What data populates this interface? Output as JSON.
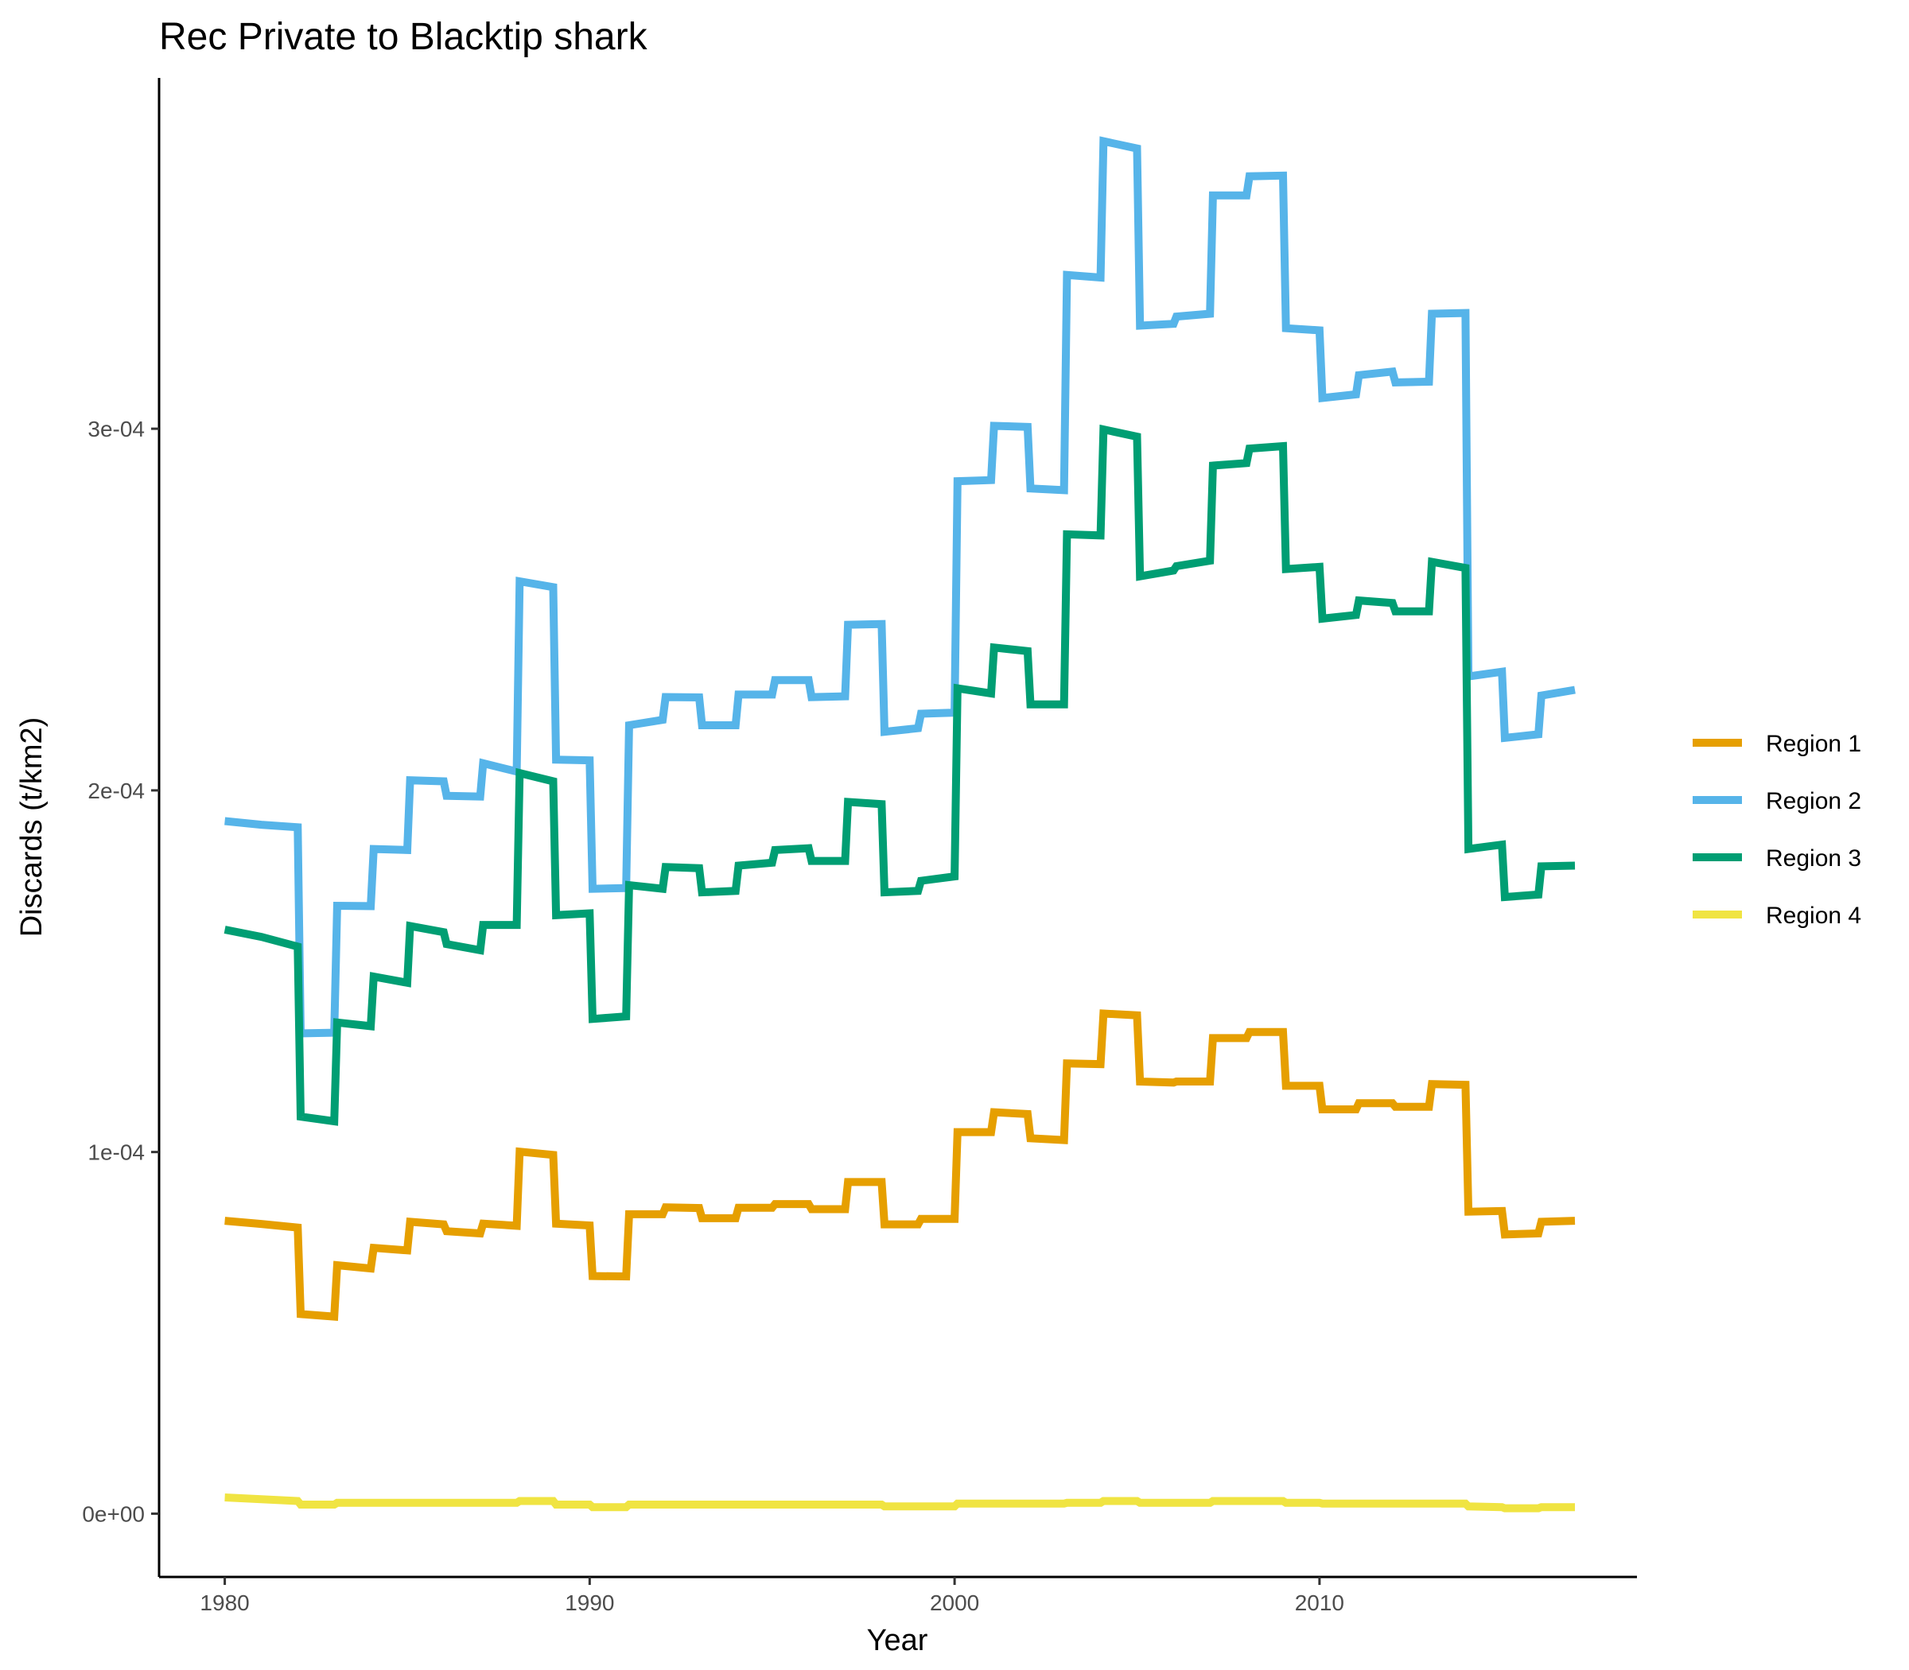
{
  "chart_data": {
    "type": "line",
    "title": "Rec Private to Blacktip shark",
    "xlabel": "Year",
    "ylabel": "Discards (t/km2)",
    "xlim": [
      1978.2,
      2018.7
    ],
    "ylim": [
      -1.75e-05,
      0.000397
    ],
    "x_ticks": [
      {
        "value": 1980,
        "label": "1980"
      },
      {
        "value": 1990,
        "label": "1990"
      },
      {
        "value": 2000,
        "label": "2000"
      },
      {
        "value": 2010,
        "label": "2010"
      }
    ],
    "y_ticks": [
      {
        "value": 0,
        "label": "0e+00"
      },
      {
        "value": 0.0001,
        "label": "1e-04"
      },
      {
        "value": 0.0002,
        "label": "2e-04"
      },
      {
        "value": 0.0003,
        "label": "3e-04"
      }
    ],
    "grid": false,
    "legend_position": "right",
    "series": [
      {
        "name": "Region 1",
        "color": "#E69F00",
        "points": [
          [
            1980.0,
            8.1e-05
          ],
          [
            1981.0,
            8.01e-05
          ],
          [
            1982.0,
            7.91e-05
          ],
          [
            1982.08,
            5.52e-05
          ],
          [
            1983.0,
            5.45e-05
          ],
          [
            1983.08,
            6.87e-05
          ],
          [
            1984.0,
            6.78e-05
          ],
          [
            1984.08,
            7.35e-05
          ],
          [
            1985.0,
            7.28e-05
          ],
          [
            1985.08,
            8.07e-05
          ],
          [
            1986.0,
            8e-05
          ],
          [
            1986.08,
            7.81e-05
          ],
          [
            1987.0,
            7.75e-05
          ],
          [
            1987.08,
            8.02e-05
          ],
          [
            1988.0,
            7.96e-05
          ],
          [
            1988.08,
            0.0001001
          ],
          [
            1989.0,
            9.92e-05
          ],
          [
            1989.08,
            8.02e-05
          ],
          [
            1990.0,
            7.97e-05
          ],
          [
            1990.08,
            6.57e-05
          ],
          [
            1991.0,
            6.56e-05
          ],
          [
            1991.08,
            8.28e-05
          ],
          [
            1992.0,
            8.28e-05
          ],
          [
            1992.08,
            8.47e-05
          ],
          [
            1993.0,
            8.45e-05
          ],
          [
            1993.08,
            8.17e-05
          ],
          [
            1994.0,
            8.17e-05
          ],
          [
            1994.08,
            8.46e-05
          ],
          [
            1995.0,
            8.46e-05
          ],
          [
            1995.08,
            8.56e-05
          ],
          [
            1996.0,
            8.56e-05
          ],
          [
            1996.08,
            8.42e-05
          ],
          [
            1997.0,
            8.42e-05
          ],
          [
            1997.08,
            9.17e-05
          ],
          [
            1998.0,
            9.17e-05
          ],
          [
            1998.08,
            8e-05
          ],
          [
            1999.0,
            8e-05
          ],
          [
            1999.08,
            8.15e-05
          ],
          [
            2000.0,
            8.15e-05
          ],
          [
            2000.08,
            0.0001055
          ],
          [
            2001.0,
            0.0001055
          ],
          [
            2001.08,
            0.000111
          ],
          [
            2002.0,
            0.0001105
          ],
          [
            2002.08,
            0.0001038
          ],
          [
            2003.0,
            0.0001033
          ],
          [
            2003.08,
            0.0001245
          ],
          [
            2004.0,
            0.0001243
          ],
          [
            2004.08,
            0.0001383
          ],
          [
            2005.0,
            0.0001378
          ],
          [
            2005.08,
            0.0001195
          ],
          [
            2006.0,
            0.0001192
          ],
          [
            2006.08,
            0.0001195
          ],
          [
            2007.0,
            0.0001195
          ],
          [
            2007.08,
            0.0001315
          ],
          [
            2008.0,
            0.0001315
          ],
          [
            2008.08,
            0.0001332
          ],
          [
            2009.0,
            0.0001332
          ],
          [
            2009.08,
            0.0001183
          ],
          [
            2010.0,
            0.0001183
          ],
          [
            2010.08,
            0.0001118
          ],
          [
            2011.0,
            0.0001118
          ],
          [
            2011.08,
            0.0001135
          ],
          [
            2012.0,
            0.0001135
          ],
          [
            2012.08,
            0.0001125
          ],
          [
            2013.0,
            0.0001125
          ],
          [
            2013.08,
            0.0001188
          ],
          [
            2014.0,
            0.0001186
          ],
          [
            2014.08,
            8.35e-05
          ],
          [
            2015.0,
            8.37e-05
          ],
          [
            2015.08,
            7.72e-05
          ],
          [
            2016.0,
            7.75e-05
          ],
          [
            2016.08,
            8.07e-05
          ],
          [
            2017.0,
            8.1e-05
          ]
        ]
      },
      {
        "name": "Region 2",
        "color": "#56B4E9",
        "points": [
          [
            1980.0,
            0.0001915
          ],
          [
            1981.0,
            0.0001905
          ],
          [
            1982.0,
            0.0001898
          ],
          [
            1982.08,
            0.0001328
          ],
          [
            1983.0,
            0.000133
          ],
          [
            1983.08,
            0.0001681
          ],
          [
            1984.0,
            0.000168
          ],
          [
            1984.08,
            0.0001838
          ],
          [
            1985.0,
            0.0001835
          ],
          [
            1985.08,
            0.0002028
          ],
          [
            1986.0,
            0.0002025
          ],
          [
            1986.08,
            0.0001985
          ],
          [
            1987.0,
            0.0001983
          ],
          [
            1987.08,
            0.0002075
          ],
          [
            1988.0,
            0.0002052
          ],
          [
            1988.08,
            0.0002578
          ],
          [
            1989.0,
            0.0002562
          ],
          [
            1989.08,
            0.0002085
          ],
          [
            1990.0,
            0.0002083
          ],
          [
            1990.08,
            0.0001728
          ],
          [
            1991.0,
            0.000173
          ],
          [
            1991.08,
            0.000218
          ],
          [
            1992.0,
            0.0002195
          ],
          [
            1992.08,
            0.0002258
          ],
          [
            1993.0,
            0.0002257
          ],
          [
            1993.08,
            0.000218
          ],
          [
            1994.0,
            0.000218
          ],
          [
            1994.08,
            0.0002265
          ],
          [
            1995.0,
            0.0002265
          ],
          [
            1995.08,
            0.0002305
          ],
          [
            1996.0,
            0.0002305
          ],
          [
            1996.08,
            0.0002258
          ],
          [
            1997.0,
            0.000226
          ],
          [
            1997.08,
            0.0002458
          ],
          [
            1998.0,
            0.000246
          ],
          [
            1998.08,
            0.0002162
          ],
          [
            1999.0,
            0.0002172
          ],
          [
            1999.08,
            0.0002212
          ],
          [
            2000.0,
            0.0002215
          ],
          [
            2000.08,
            0.0002855
          ],
          [
            2001.0,
            0.0002858
          ],
          [
            2001.08,
            0.0003008
          ],
          [
            2002.0,
            0.0003005
          ],
          [
            2002.08,
            0.0002835
          ],
          [
            2003.0,
            0.000283
          ],
          [
            2003.08,
            0.0003425
          ],
          [
            2004.0,
            0.0003418
          ],
          [
            2004.08,
            0.0003795
          ],
          [
            2005.0,
            0.0003775
          ],
          [
            2005.08,
            0.0003285
          ],
          [
            2006.0,
            0.000329
          ],
          [
            2006.08,
            0.000331
          ],
          [
            2007.0,
            0.0003318
          ],
          [
            2007.08,
            0.0003645
          ],
          [
            2008.0,
            0.0003645
          ],
          [
            2008.08,
            0.0003698
          ],
          [
            2009.0,
            0.00037
          ],
          [
            2009.08,
            0.0003278
          ],
          [
            2010.0,
            0.0003272
          ],
          [
            2010.08,
            0.0003085
          ],
          [
            2011.0,
            0.0003095
          ],
          [
            2011.08,
            0.0003148
          ],
          [
            2012.0,
            0.0003158
          ],
          [
            2012.08,
            0.0003128
          ],
          [
            2013.0,
            0.000313
          ],
          [
            2013.08,
            0.0003318
          ],
          [
            2014.0,
            0.000332
          ],
          [
            2014.08,
            0.0002315
          ],
          [
            2015.0,
            0.0002328
          ],
          [
            2015.08,
            0.0002145
          ],
          [
            2016.0,
            0.0002155
          ],
          [
            2016.08,
            0.0002262
          ],
          [
            2017.0,
            0.0002278
          ]
        ]
      },
      {
        "name": "Region 3",
        "color": "#009E73",
        "points": [
          [
            1980.0,
            0.0001615
          ],
          [
            1981.0,
            0.0001595
          ],
          [
            1982.0,
            0.0001568
          ],
          [
            1982.08,
            0.0001098
          ],
          [
            1983.0,
            0.0001085
          ],
          [
            1983.08,
            0.0001358
          ],
          [
            1984.0,
            0.0001348
          ],
          [
            1984.08,
            0.0001485
          ],
          [
            1985.0,
            0.0001468
          ],
          [
            1985.08,
            0.0001625
          ],
          [
            1986.0,
            0.0001608
          ],
          [
            1986.08,
            0.0001575
          ],
          [
            1987.0,
            0.0001558
          ],
          [
            1987.08,
            0.0001628
          ],
          [
            1988.0,
            0.0001628
          ],
          [
            1988.08,
            0.0002048
          ],
          [
            1989.0,
            0.0002025
          ],
          [
            1989.08,
            0.0001655
          ],
          [
            1990.0,
            0.000166
          ],
          [
            1990.08,
            0.0001368
          ],
          [
            1991.0,
            0.0001375
          ],
          [
            1991.08,
            0.0001738
          ],
          [
            1992.0,
            0.0001728
          ],
          [
            1992.08,
            0.0001788
          ],
          [
            1993.0,
            0.0001785
          ],
          [
            1993.08,
            0.0001718
          ],
          [
            1994.0,
            0.0001722
          ],
          [
            1994.08,
            0.0001792
          ],
          [
            1995.0,
            0.00018
          ],
          [
            1995.08,
            0.0001835
          ],
          [
            1996.0,
            0.000184
          ],
          [
            1996.08,
            0.0001805
          ],
          [
            1997.0,
            0.0001805
          ],
          [
            1997.08,
            0.0001968
          ],
          [
            1998.0,
            0.0001962
          ],
          [
            1998.08,
            0.0001718
          ],
          [
            1999.0,
            0.0001722
          ],
          [
            1999.08,
            0.000175
          ],
          [
            2000.0,
            0.0001762
          ],
          [
            2000.08,
            0.0002282
          ],
          [
            2001.0,
            0.0002268
          ],
          [
            2001.08,
            0.0002395
          ],
          [
            2002.0,
            0.0002385
          ],
          [
            2002.08,
            0.0002238
          ],
          [
            2003.0,
            0.0002238
          ],
          [
            2003.08,
            0.0002708
          ],
          [
            2004.0,
            0.0002705
          ],
          [
            2004.08,
            0.0002998
          ],
          [
            2005.0,
            0.0002978
          ],
          [
            2005.08,
            0.0002592
          ],
          [
            2006.0,
            0.0002608
          ],
          [
            2006.08,
            0.000262
          ],
          [
            2007.0,
            0.0002635
          ],
          [
            2007.08,
            0.0002898
          ],
          [
            2008.0,
            0.0002905
          ],
          [
            2008.08,
            0.0002945
          ],
          [
            2009.0,
            0.0002952
          ],
          [
            2009.08,
            0.0002612
          ],
          [
            2010.0,
            0.0002618
          ],
          [
            2010.08,
            0.0002475
          ],
          [
            2011.0,
            0.0002485
          ],
          [
            2011.08,
            0.0002525
          ],
          [
            2012.0,
            0.0002518
          ],
          [
            2012.08,
            0.0002495
          ],
          [
            2013.0,
            0.0002495
          ],
          [
            2013.08,
            0.0002632
          ],
          [
            2014.0,
            0.0002615
          ],
          [
            2014.08,
            0.0001838
          ],
          [
            2015.0,
            0.000185
          ],
          [
            2015.08,
            0.0001705
          ],
          [
            2016.0,
            0.0001712
          ],
          [
            2016.08,
            0.000179
          ],
          [
            2017.0,
            0.0001792
          ]
        ]
      },
      {
        "name": "Region 4",
        "color": "#F0E442",
        "points": [
          [
            1980.0,
            4.5e-06
          ],
          [
            1981.0,
            4e-06
          ],
          [
            1982.0,
            3.5e-06
          ],
          [
            1982.08,
            2.5e-06
          ],
          [
            1983.0,
            2.5e-06
          ],
          [
            1983.08,
            3e-06
          ],
          [
            1984.0,
            3e-06
          ],
          [
            1985.0,
            3e-06
          ],
          [
            1986.0,
            3e-06
          ],
          [
            1987.0,
            3e-06
          ],
          [
            1988.0,
            3e-06
          ],
          [
            1988.08,
            3.5e-06
          ],
          [
            1989.0,
            3.5e-06
          ],
          [
            1989.08,
            2.5e-06
          ],
          [
            1990.0,
            2.5e-06
          ],
          [
            1990.08,
            1.8e-06
          ],
          [
            1991.0,
            1.8e-06
          ],
          [
            1991.08,
            2.5e-06
          ],
          [
            1992.0,
            2.5e-06
          ],
          [
            1997.0,
            2.5e-06
          ],
          [
            1998.0,
            2.5e-06
          ],
          [
            1998.08,
            2e-06
          ],
          [
            2000.0,
            2e-06
          ],
          [
            2000.08,
            2.8e-06
          ],
          [
            2003.0,
            2.8e-06
          ],
          [
            2003.08,
            3e-06
          ],
          [
            2004.0,
            3e-06
          ],
          [
            2004.08,
            3.5e-06
          ],
          [
            2005.0,
            3.5e-06
          ],
          [
            2005.08,
            3e-06
          ],
          [
            2007.0,
            3e-06
          ],
          [
            2007.08,
            3.5e-06
          ],
          [
            2009.0,
            3.5e-06
          ],
          [
            2009.08,
            3e-06
          ],
          [
            2010.0,
            3e-06
          ],
          [
            2010.08,
            2.8e-06
          ],
          [
            2014.0,
            2.8e-06
          ],
          [
            2014.08,
            2e-06
          ],
          [
            2015.0,
            1.8e-06
          ],
          [
            2015.08,
            1.5e-06
          ],
          [
            2016.0,
            1.5e-06
          ],
          [
            2016.08,
            1.8e-06
          ],
          [
            2017.0,
            1.8e-06
          ]
        ]
      }
    ]
  }
}
